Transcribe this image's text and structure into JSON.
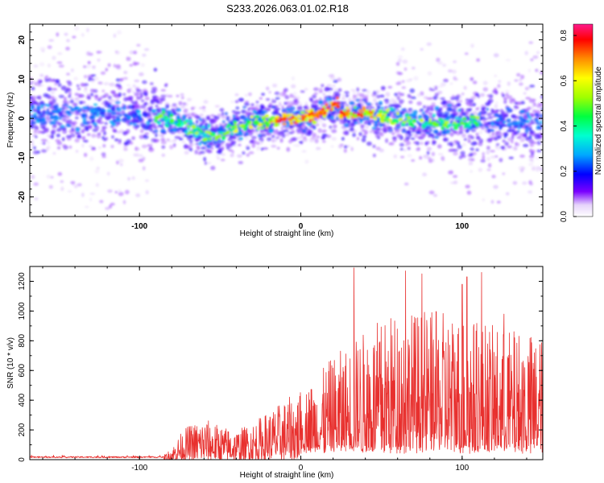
{
  "title": "S233.2026.063.01.02.R18",
  "chart_data": [
    {
      "type": "heatmap",
      "xlabel": "Height of straight line (km)",
      "ylabel": "Frequency (Hz)",
      "xlim": [
        -168,
        150
      ],
      "ylim": [
        -25,
        24
      ],
      "xticks": [
        "-100",
        "0",
        "100"
      ],
      "yticks": [
        "20",
        "10",
        "0",
        "-10",
        "-20"
      ],
      "colorbar": {
        "label": "Normalized spectral amplitude",
        "range": [
          0.0,
          0.85
        ],
        "ticks": [
          "0.0",
          "0.2",
          "0.4",
          "0.6",
          "0.8"
        ]
      },
      "ridge": {
        "x": [
          -168,
          -120,
          -100,
          -85,
          -70,
          -60,
          -50,
          -40,
          -30,
          -20,
          -10,
          0,
          10,
          20,
          22,
          25,
          40,
          60,
          80,
          100,
          120,
          150
        ],
        "y": [
          1,
          1,
          1,
          0,
          -2,
          -4,
          -4,
          -2,
          -1,
          -1,
          0,
          0,
          1,
          3,
          5,
          1,
          1,
          0,
          -1,
          -1,
          -1,
          -1
        ]
      },
      "grid": false
    },
    {
      "type": "line",
      "xlabel": "Height of straight line (km)",
      "ylabel": "SNR (10 * v/v)",
      "xlim": [
        -168,
        150
      ],
      "ylim": [
        0,
        1300
      ],
      "xticks": [
        "-100",
        "0",
        "100"
      ],
      "yticks": [
        "0",
        "200",
        "400",
        "600",
        "800",
        "1000",
        "1200"
      ],
      "color": "#e8302e",
      "envelope": {
        "x": [
          -168,
          -100,
          -85,
          -80,
          -75,
          -70,
          -60,
          -50,
          -40,
          -30,
          -20,
          -10,
          0,
          10,
          20,
          30,
          40,
          60,
          80,
          100,
          120,
          150
        ],
        "y": [
          20,
          25,
          30,
          80,
          170,
          230,
          280,
          230,
          200,
          250,
          330,
          400,
          470,
          560,
          700,
          780,
          880,
          1020,
          1000,
          1000,
          900,
          850
        ]
      },
      "peaks": [
        {
          "x": 33,
          "y": 1290
        },
        {
          "x": 65,
          "y": 1270
        },
        {
          "x": 75,
          "y": 1250
        },
        {
          "x": 100,
          "y": 1180
        },
        {
          "x": 103,
          "y": 1230
        },
        {
          "x": 112,
          "y": 1260
        },
        {
          "x": 126,
          "y": 980
        }
      ],
      "grid": false
    }
  ]
}
